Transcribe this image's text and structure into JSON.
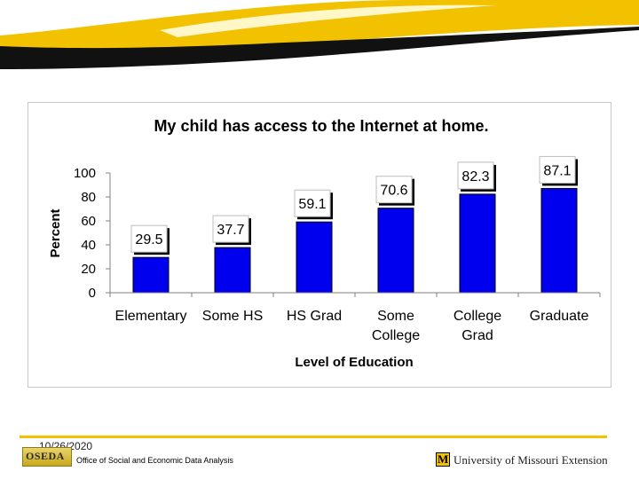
{
  "colors": {
    "bar_fill": "#0000ee",
    "banner_yellow": "#f2c200",
    "banner_black": "#111111"
  },
  "chart_data": {
    "type": "bar",
    "title": "My child has access to the Internet at home.",
    "xlabel": "Level of Education",
    "ylabel": "Percent",
    "ylim": [
      0,
      100
    ],
    "yticks": [
      "100",
      "80",
      "60",
      "40",
      "20",
      "0"
    ],
    "categories": [
      [
        "Elementary"
      ],
      [
        "Some HS"
      ],
      [
        "HS Grad"
      ],
      [
        "Some",
        "College"
      ],
      [
        "College",
        "Grad"
      ],
      [
        "Graduate"
      ]
    ],
    "values": [
      29.5,
      37.7,
      59.1,
      70.6,
      82.3,
      87.1
    ],
    "value_labels": [
      "29.5",
      "37.7",
      "59.1",
      "70.6",
      "82.3",
      "87.1"
    ],
    "grid": false,
    "legend": "none"
  },
  "footer": {
    "date": "10/26/2020",
    "org_logo_text": "OSEDA",
    "office": "Office of Social and Economic Data Analysis",
    "mu_logo_letter": "M",
    "university": "University of Missouri Extension"
  }
}
